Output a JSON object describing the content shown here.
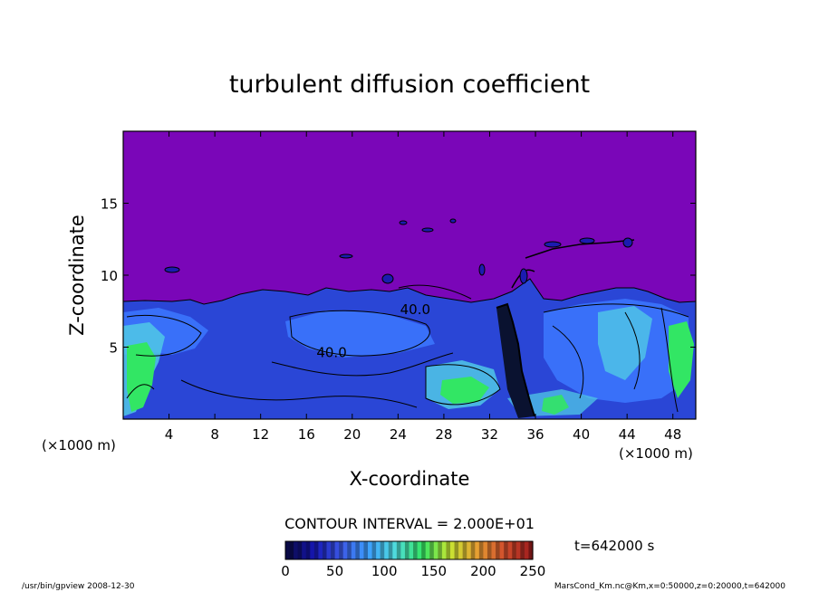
{
  "chart_data": {
    "type": "heatmap",
    "title": "turbulent diffusion coefficient",
    "xlabel": "X-coordinate",
    "ylabel": "Z-coordinate",
    "x_unit_left": "(×1000 m)",
    "x_unit_right": "(×1000 m)",
    "xlim": [
      0,
      50
    ],
    "ylim": [
      0,
      20
    ],
    "x_ticks": [
      4,
      8,
      12,
      16,
      20,
      24,
      28,
      32,
      36,
      40,
      44,
      48
    ],
    "y_ticks": [
      5,
      10,
      15
    ],
    "contour_interval_text": "CONTOUR INTERVAL = 2.000E+01",
    "contour_labels": [
      {
        "text": "40.0",
        "x": 25.5,
        "z": 7.3
      },
      {
        "text": "40.0",
        "x": 18.2,
        "z": 4.3
      }
    ],
    "colorbar": {
      "min": 0,
      "max": 250,
      "ticks": [
        0,
        50,
        100,
        150,
        200,
        250
      ],
      "colors": [
        "#0a0a46",
        "#1616b4",
        "#3c5ae6",
        "#3ca0ff",
        "#50dcdc",
        "#32e664",
        "#c8e632",
        "#e6a032",
        "#d2502d",
        "#a01e1e"
      ]
    },
    "background_color": "#7a06b8",
    "time_label": "t=642000 s",
    "footer_left": "/usr/bin/gpview  2008-12-30",
    "footer_right": "MarsCond_Km.nc@Km,x=0:50000,z=0:20000,t=642000"
  }
}
